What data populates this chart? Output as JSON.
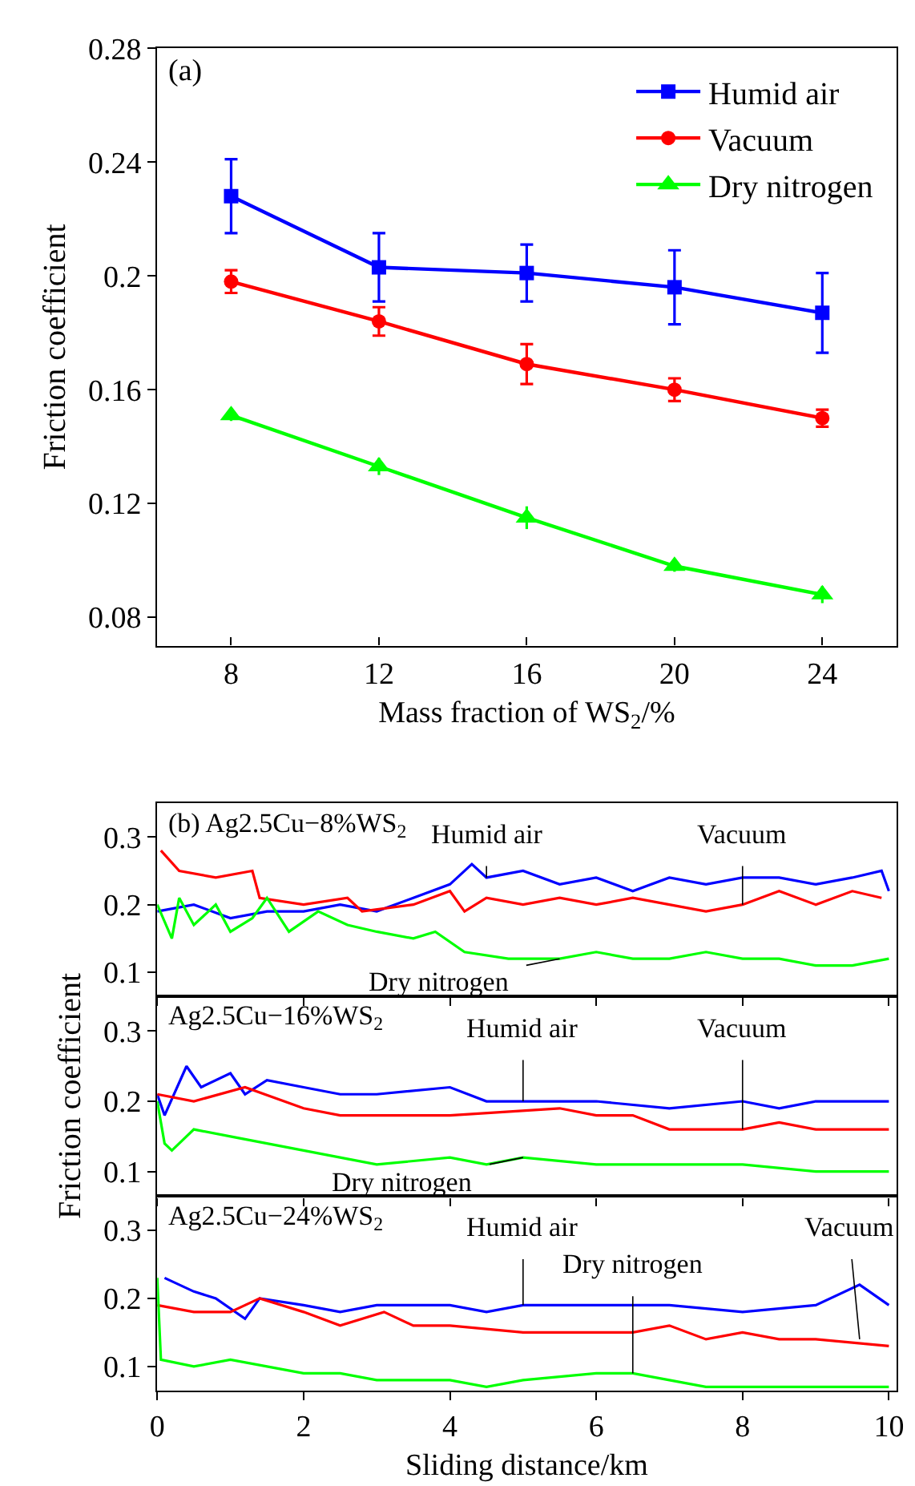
{
  "chart_data": [
    {
      "type": "line",
      "title": "(a)",
      "xlabel": "Mass fraction of WS$_{2}$/%",
      "ylabel": "Friction coefficient",
      "x": [
        8,
        12,
        16,
        20,
        24
      ],
      "xlim": [
        6,
        26
      ],
      "xticks": [
        8,
        12,
        16,
        20,
        24
      ],
      "ylim": [
        0.07,
        0.28
      ],
      "yticks": [
        0.08,
        0.12,
        0.16,
        0.2,
        0.24,
        0.28
      ],
      "grid": false,
      "legend": "top right",
      "series": [
        {
          "name": "Humid air",
          "color": "#0000ff",
          "marker": "square",
          "values": [
            0.228,
            0.203,
            0.201,
            0.196,
            0.187
          ],
          "errors": [
            0.013,
            0.012,
            0.01,
            0.013,
            0.014
          ]
        },
        {
          "name": "Vacuum",
          "color": "#ff0000",
          "marker": "circle",
          "values": [
            0.198,
            0.184,
            0.169,
            0.16,
            0.15
          ],
          "errors": [
            0.004,
            0.005,
            0.007,
            0.004,
            0.003
          ]
        },
        {
          "name": "Dry nitrogen",
          "color": "#00ff00",
          "marker": "triangle",
          "values": [
            0.151,
            0.133,
            0.115,
            0.098,
            0.088
          ],
          "errors": [
            0.002,
            0.003,
            0.004,
            0.002,
            0.003
          ]
        }
      ]
    },
    {
      "type": "line",
      "title": "(b) Ag2.5Cu−8%WS$_{2}$",
      "xlim": [
        0,
        10.1
      ],
      "xticks": [
        0,
        2,
        4,
        6,
        8,
        10
      ],
      "ylim": [
        0.065,
        0.35
      ],
      "yticks": [
        0.1,
        0.2,
        0.3
      ],
      "grid": false,
      "legend": false,
      "tick_labels": "y",
      "series": [
        {
          "color": "#0000ff",
          "x": [
            0,
            0.5,
            1,
            1.5,
            2,
            2.5,
            3,
            3.5,
            4,
            4.3,
            4.5,
            5,
            5.5,
            6,
            6.5,
            7,
            7.5,
            8,
            8.5,
            9,
            9.5,
            9.9,
            10
          ],
          "values": [
            0.19,
            0.2,
            0.18,
            0.19,
            0.19,
            0.2,
            0.19,
            0.21,
            0.23,
            0.26,
            0.24,
            0.25,
            0.23,
            0.24,
            0.22,
            0.24,
            0.23,
            0.24,
            0.24,
            0.23,
            0.24,
            0.25,
            0.22
          ]
        },
        {
          "color": "#ff0000",
          "x": [
            0.05,
            0.3,
            0.8,
            1.3,
            1.4,
            2,
            2.6,
            2.8,
            3.5,
            4,
            4.2,
            4.5,
            5,
            5.5,
            6,
            6.5,
            7,
            7.5,
            8,
            8.5,
            9,
            9.5,
            9.9
          ],
          "values": [
            0.28,
            0.25,
            0.24,
            0.25,
            0.21,
            0.2,
            0.21,
            0.19,
            0.2,
            0.22,
            0.19,
            0.21,
            0.2,
            0.21,
            0.2,
            0.21,
            0.2,
            0.19,
            0.2,
            0.22,
            0.2,
            0.22,
            0.21
          ]
        },
        {
          "color": "#00ff00",
          "x": [
            0,
            0.2,
            0.3,
            0.5,
            0.8,
            1,
            1.3,
            1.5,
            1.8,
            2.2,
            2.6,
            3,
            3.5,
            3.8,
            4.2,
            4.8,
            5.5,
            6,
            6.5,
            7,
            7.5,
            8,
            8.5,
            9,
            9.5,
            10
          ],
          "values": [
            0.2,
            0.15,
            0.21,
            0.17,
            0.2,
            0.16,
            0.18,
            0.21,
            0.16,
            0.19,
            0.17,
            0.16,
            0.15,
            0.16,
            0.13,
            0.12,
            0.12,
            0.13,
            0.12,
            0.12,
            0.13,
            0.12,
            0.12,
            0.11,
            0.11,
            0.12
          ]
        }
      ],
      "annotations": [
        {
          "text": "Humid air",
          "x": 4.5,
          "y": 0.24
        },
        {
          "text": "Vacuum",
          "x": 8,
          "y": 0.2
        },
        {
          "text": "Dry nitrogen",
          "x": 5.5,
          "y": 0.12
        }
      ]
    },
    {
      "type": "line",
      "title": "Ag2.5Cu−16%WS$_{2}$",
      "ylabel": "Friction coefficient",
      "xlim": [
        0,
        10.1
      ],
      "xticks": [
        0,
        2,
        4,
        6,
        8,
        10
      ],
      "ylim": [
        0.065,
        0.35
      ],
      "yticks": [
        0.1,
        0.2,
        0.3
      ],
      "grid": false,
      "legend": false,
      "tick_labels": "y",
      "series": [
        {
          "color": "#0000ff",
          "x": [
            0,
            0.1,
            0.4,
            0.6,
            1,
            1.2,
            1.5,
            2,
            2.5,
            3,
            4,
            4.5,
            5,
            6,
            7,
            8,
            8.5,
            9,
            10
          ],
          "values": [
            0.21,
            0.18,
            0.25,
            0.22,
            0.24,
            0.21,
            0.23,
            0.22,
            0.21,
            0.21,
            0.22,
            0.2,
            0.2,
            0.2,
            0.19,
            0.2,
            0.19,
            0.2,
            0.2
          ]
        },
        {
          "color": "#ff0000",
          "x": [
            0,
            0.5,
            1.2,
            2,
            2.5,
            3,
            4,
            5.5,
            6,
            6.5,
            7,
            8,
            8.5,
            9,
            10
          ],
          "values": [
            0.21,
            0.2,
            0.22,
            0.19,
            0.18,
            0.18,
            0.18,
            0.19,
            0.18,
            0.18,
            0.16,
            0.16,
            0.17,
            0.16,
            0.16
          ]
        },
        {
          "color": "#00ff00",
          "x": [
            0,
            0.1,
            0.2,
            0.5,
            1,
            2,
            2.5,
            3,
            4,
            4.5,
            5,
            6,
            7,
            8,
            9,
            10
          ],
          "values": [
            0.2,
            0.14,
            0.13,
            0.16,
            0.15,
            0.13,
            0.12,
            0.11,
            0.12,
            0.11,
            0.12,
            0.11,
            0.11,
            0.11,
            0.1,
            0.1
          ]
        }
      ],
      "annotations": [
        {
          "text": "Humid air",
          "x": 5,
          "y": 0.2
        },
        {
          "text": "Vacuum",
          "x": 8,
          "y": 0.16
        },
        {
          "text": "Dry nitrogen",
          "x": 5,
          "y": 0.12
        }
      ]
    },
    {
      "type": "line",
      "title": "Ag2.5Cu−24%WS$_{2}$",
      "xlabel": "Sliding distance/km",
      "xlim": [
        0,
        10.1
      ],
      "xticks": [
        0,
        2,
        4,
        6,
        8,
        10
      ],
      "ylim": [
        0.065,
        0.35
      ],
      "yticks": [
        0.1,
        0.2,
        0.3
      ],
      "grid": false,
      "legend": false,
      "series": [
        {
          "color": "#0000ff",
          "x": [
            0.1,
            0.5,
            0.8,
            1.2,
            1.4,
            2,
            2.5,
            3,
            4,
            4.5,
            5,
            6,
            7,
            8,
            9,
            9.6,
            10
          ],
          "values": [
            0.23,
            0.21,
            0.2,
            0.17,
            0.2,
            0.19,
            0.18,
            0.19,
            0.19,
            0.18,
            0.19,
            0.19,
            0.19,
            0.18,
            0.19,
            0.22,
            0.19
          ]
        },
        {
          "color": "#ff0000",
          "x": [
            0,
            0.5,
            1,
            1.4,
            2,
            2.5,
            3.1,
            3.5,
            4,
            5,
            6,
            6.5,
            7,
            7.5,
            8,
            8.5,
            9,
            10
          ],
          "values": [
            0.19,
            0.18,
            0.18,
            0.2,
            0.18,
            0.16,
            0.18,
            0.16,
            0.16,
            0.15,
            0.15,
            0.15,
            0.16,
            0.14,
            0.15,
            0.14,
            0.14,
            0.13
          ]
        },
        {
          "color": "#00ff00",
          "x": [
            0,
            0.05,
            0.5,
            1,
            1.5,
            2,
            2.5,
            3,
            4,
            4.5,
            5,
            6,
            6.5,
            7,
            7.5,
            8,
            9,
            10
          ],
          "values": [
            0.23,
            0.11,
            0.1,
            0.11,
            0.1,
            0.09,
            0.09,
            0.08,
            0.08,
            0.07,
            0.08,
            0.09,
            0.09,
            0.08,
            0.07,
            0.07,
            0.07,
            0.07
          ]
        }
      ],
      "annotations": [
        {
          "text": "Humid air",
          "x": 5,
          "y": 0.19
        },
        {
          "text": "Vacuum",
          "x": 9.6,
          "y": 0.14
        },
        {
          "text": "Dry nitrogen",
          "x": 6.5,
          "y": 0.09
        }
      ]
    }
  ]
}
